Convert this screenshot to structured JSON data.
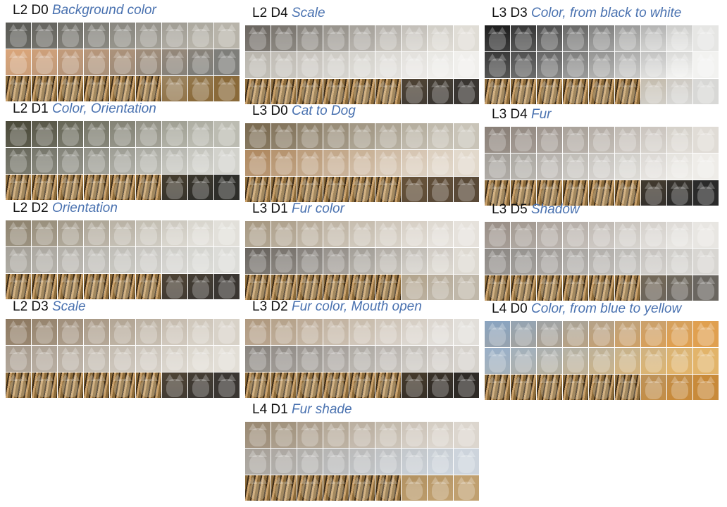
{
  "panels": [
    {
      "layer": "L2 D0",
      "desc": "Background color",
      "colors": [
        "#5a5a55",
        "#b8b4aa",
        "#d9a57a",
        "#7e7e7a",
        "#cfcfcc",
        "#8a6a3a"
      ]
    },
    {
      "layer": "L2 D1",
      "desc": "Color, Orientation",
      "colors": [
        "#4b4a3a",
        "#bcbcb2",
        "#6a6a5e",
        "#d2d2cc",
        "#8a6a3a",
        "#2e2e2a"
      ]
    },
    {
      "layer": "L2 D2",
      "desc": "Orientation",
      "colors": [
        "#8f8470",
        "#e2e0da",
        "#a6a29a",
        "#dcdcd8",
        "#8a6a3a",
        "#3a3632"
      ]
    },
    {
      "layer": "L2 D3",
      "desc": "Scale",
      "colors": [
        "#8e7a62",
        "#d8d2c8",
        "#a89c8e",
        "#e2ded6",
        "#8a6a3a",
        "#3a3632"
      ]
    },
    {
      "layer": "L2 D4",
      "desc": "Scale",
      "colors": [
        "#6b6660",
        "#e0ddd6",
        "#bab6ae",
        "#f0efec",
        "#8a6a3a",
        "#3a3632"
      ]
    },
    {
      "layer": "L3 D0",
      "desc": "Cat to Dog",
      "colors": [
        "#7a6a50",
        "#c9c4b8",
        "#b08a62",
        "#e2d9cc",
        "#8a6a3a",
        "#5a4a38"
      ]
    },
    {
      "layer": "L3 D1",
      "desc": "Fur color",
      "colors": [
        "#a89a84",
        "#e6e2dc",
        "#6a6560",
        "#dedad2",
        "#8a6a3a",
        "#c0b8aa"
      ]
    },
    {
      "layer": "L3 D2",
      "desc": "Fur color, Mouth open",
      "colors": [
        "#b09a80",
        "#e2dfda",
        "#8a8580",
        "#d6d2cc",
        "#8a6a3a",
        "#2e2a26"
      ]
    },
    {
      "layer": "L4 D1",
      "desc": "Fur shade",
      "colors": [
        "#9a8a74",
        "#dcd6ce",
        "#a8a29a",
        "#cdd4dc",
        "#8a6a3a",
        "#c0a070"
      ]
    },
    {
      "layer": "L3 D3",
      "desc": "Color, from black to white",
      "colors": [
        "#1e1e1e",
        "#e6e6e4",
        "#3a3a3a",
        "#f2f2f0",
        "#8a6a3a",
        "#d8d8d6"
      ]
    },
    {
      "layer": "L3 D4",
      "desc": "Fur",
      "colors": [
        "#8a8078",
        "#e0dcd6",
        "#a4a09a",
        "#eeece8",
        "#8a6a3a",
        "#2a2a2a"
      ]
    },
    {
      "layer": "L3 D5",
      "desc": "Shadow",
      "colors": [
        "#9a9088",
        "#e8e6e2",
        "#8e8a86",
        "#d8d6d2",
        "#8a6a3a",
        "#6a6660"
      ]
    },
    {
      "layer": "L4 D0",
      "desc": "Color, from blue to yellow",
      "colors": [
        "#8aa4c0",
        "#e0a050",
        "#9ab0c8",
        "#e2b46a",
        "#9aa8b4",
        "#c88a3a"
      ]
    }
  ],
  "accent_color": "#4a72b0"
}
